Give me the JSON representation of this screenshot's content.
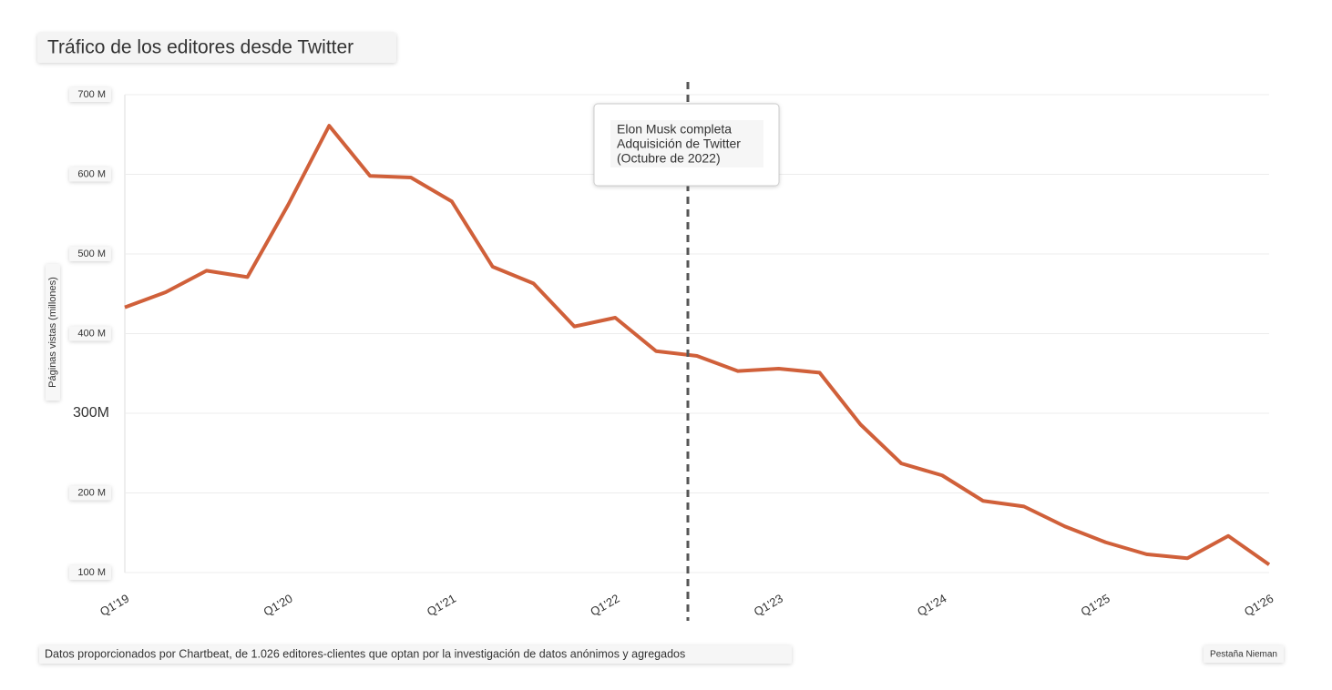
{
  "chart_data": {
    "type": "line",
    "title": "Tráfico de los editores desde Twitter",
    "y_label": "Páginas vistas (millones)",
    "categories": [
      "Q1'19",
      null,
      null,
      null,
      "Q1'20",
      null,
      null,
      null,
      "Q1'21",
      null,
      null,
      null,
      "Q1'22",
      null,
      null,
      null,
      "Q1'23",
      null,
      null,
      null,
      "Q1'24",
      null,
      null,
      null,
      "Q1'25",
      null,
      null,
      null,
      "Q1'26"
    ],
    "series": [
      {
        "name": "Páginas vistas",
        "color": "#d0603a",
        "values": [
          433,
          452,
          479,
          471,
          562,
          661,
          598,
          596,
          566,
          484,
          463,
          409,
          420,
          378,
          372,
          353,
          356,
          351,
          286,
          237,
          222,
          190,
          183,
          158,
          138,
          123,
          118,
          146,
          110
        ]
      }
    ],
    "ylim": [
      100,
      700
    ],
    "yticks": [
      {
        "value": 100,
        "label": "100 M"
      },
      {
        "value": 200,
        "label": "200 M"
      },
      {
        "value": 300,
        "label": "300M"
      },
      {
        "value": 400,
        "label": "400 M"
      },
      {
        "value": 500,
        "label": "500 M"
      },
      {
        "value": 600,
        "label": "600 M"
      },
      {
        "value": 700,
        "label": "700 M"
      }
    ],
    "grid": true,
    "annotation": [
      "Elon Musk completa",
      "Adquisición de Twitter",
      "(Octubre de 2022)"
    ],
    "footnote": "Datos proporcionados por Chartbeat, de 1.026 editores-clientes que optan por la investigación de datos anónimos y agregados",
    "source": "Pestaña Nieman"
  }
}
